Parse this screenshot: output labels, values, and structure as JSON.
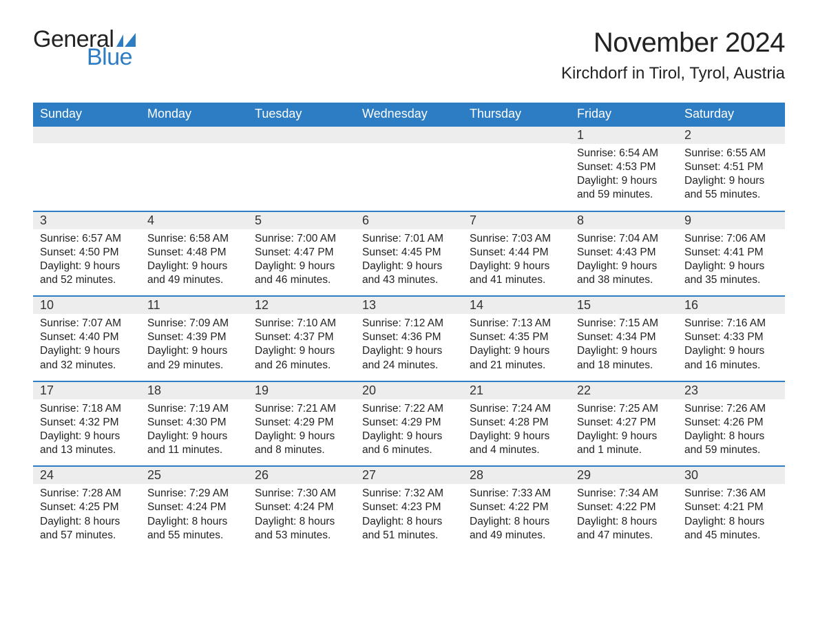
{
  "logo": {
    "general": "General",
    "blue": "Blue",
    "flag_color": "#2d7dc4"
  },
  "title": "November 2024",
  "location": "Kirchdorf in Tirol, Tyrol, Austria",
  "colors": {
    "header_bg": "#2d7dc4",
    "date_bar_bg": "#ededed",
    "week_divider": "#2d7dc4",
    "text": "#222222",
    "logo_blue": "#2d7dc4"
  },
  "day_names": [
    "Sunday",
    "Monday",
    "Tuesday",
    "Wednesday",
    "Thursday",
    "Friday",
    "Saturday"
  ],
  "weeks": [
    [
      null,
      null,
      null,
      null,
      null,
      {
        "d": "1",
        "sr": "6:54 AM",
        "ss": "4:53 PM",
        "dl": "9 hours and 59 minutes."
      },
      {
        "d": "2",
        "sr": "6:55 AM",
        "ss": "4:51 PM",
        "dl": "9 hours and 55 minutes."
      }
    ],
    [
      {
        "d": "3",
        "sr": "6:57 AM",
        "ss": "4:50 PM",
        "dl": "9 hours and 52 minutes."
      },
      {
        "d": "4",
        "sr": "6:58 AM",
        "ss": "4:48 PM",
        "dl": "9 hours and 49 minutes."
      },
      {
        "d": "5",
        "sr": "7:00 AM",
        "ss": "4:47 PM",
        "dl": "9 hours and 46 minutes."
      },
      {
        "d": "6",
        "sr": "7:01 AM",
        "ss": "4:45 PM",
        "dl": "9 hours and 43 minutes."
      },
      {
        "d": "7",
        "sr": "7:03 AM",
        "ss": "4:44 PM",
        "dl": "9 hours and 41 minutes."
      },
      {
        "d": "8",
        "sr": "7:04 AM",
        "ss": "4:43 PM",
        "dl": "9 hours and 38 minutes."
      },
      {
        "d": "9",
        "sr": "7:06 AM",
        "ss": "4:41 PM",
        "dl": "9 hours and 35 minutes."
      }
    ],
    [
      {
        "d": "10",
        "sr": "7:07 AM",
        "ss": "4:40 PM",
        "dl": "9 hours and 32 minutes."
      },
      {
        "d": "11",
        "sr": "7:09 AM",
        "ss": "4:39 PM",
        "dl": "9 hours and 29 minutes."
      },
      {
        "d": "12",
        "sr": "7:10 AM",
        "ss": "4:37 PM",
        "dl": "9 hours and 26 minutes."
      },
      {
        "d": "13",
        "sr": "7:12 AM",
        "ss": "4:36 PM",
        "dl": "9 hours and 24 minutes."
      },
      {
        "d": "14",
        "sr": "7:13 AM",
        "ss": "4:35 PM",
        "dl": "9 hours and 21 minutes."
      },
      {
        "d": "15",
        "sr": "7:15 AM",
        "ss": "4:34 PM",
        "dl": "9 hours and 18 minutes."
      },
      {
        "d": "16",
        "sr": "7:16 AM",
        "ss": "4:33 PM",
        "dl": "9 hours and 16 minutes."
      }
    ],
    [
      {
        "d": "17",
        "sr": "7:18 AM",
        "ss": "4:32 PM",
        "dl": "9 hours and 13 minutes."
      },
      {
        "d": "18",
        "sr": "7:19 AM",
        "ss": "4:30 PM",
        "dl": "9 hours and 11 minutes."
      },
      {
        "d": "19",
        "sr": "7:21 AM",
        "ss": "4:29 PM",
        "dl": "9 hours and 8 minutes."
      },
      {
        "d": "20",
        "sr": "7:22 AM",
        "ss": "4:29 PM",
        "dl": "9 hours and 6 minutes."
      },
      {
        "d": "21",
        "sr": "7:24 AM",
        "ss": "4:28 PM",
        "dl": "9 hours and 4 minutes."
      },
      {
        "d": "22",
        "sr": "7:25 AM",
        "ss": "4:27 PM",
        "dl": "9 hours and 1 minute."
      },
      {
        "d": "23",
        "sr": "7:26 AM",
        "ss": "4:26 PM",
        "dl": "8 hours and 59 minutes."
      }
    ],
    [
      {
        "d": "24",
        "sr": "7:28 AM",
        "ss": "4:25 PM",
        "dl": "8 hours and 57 minutes."
      },
      {
        "d": "25",
        "sr": "7:29 AM",
        "ss": "4:24 PM",
        "dl": "8 hours and 55 minutes."
      },
      {
        "d": "26",
        "sr": "7:30 AM",
        "ss": "4:24 PM",
        "dl": "8 hours and 53 minutes."
      },
      {
        "d": "27",
        "sr": "7:32 AM",
        "ss": "4:23 PM",
        "dl": "8 hours and 51 minutes."
      },
      {
        "d": "28",
        "sr": "7:33 AM",
        "ss": "4:22 PM",
        "dl": "8 hours and 49 minutes."
      },
      {
        "d": "29",
        "sr": "7:34 AM",
        "ss": "4:22 PM",
        "dl": "8 hours and 47 minutes."
      },
      {
        "d": "30",
        "sr": "7:36 AM",
        "ss": "4:21 PM",
        "dl": "8 hours and 45 minutes."
      }
    ]
  ],
  "labels": {
    "sunrise": "Sunrise:",
    "sunset": "Sunset:",
    "daylight": "Daylight:"
  }
}
